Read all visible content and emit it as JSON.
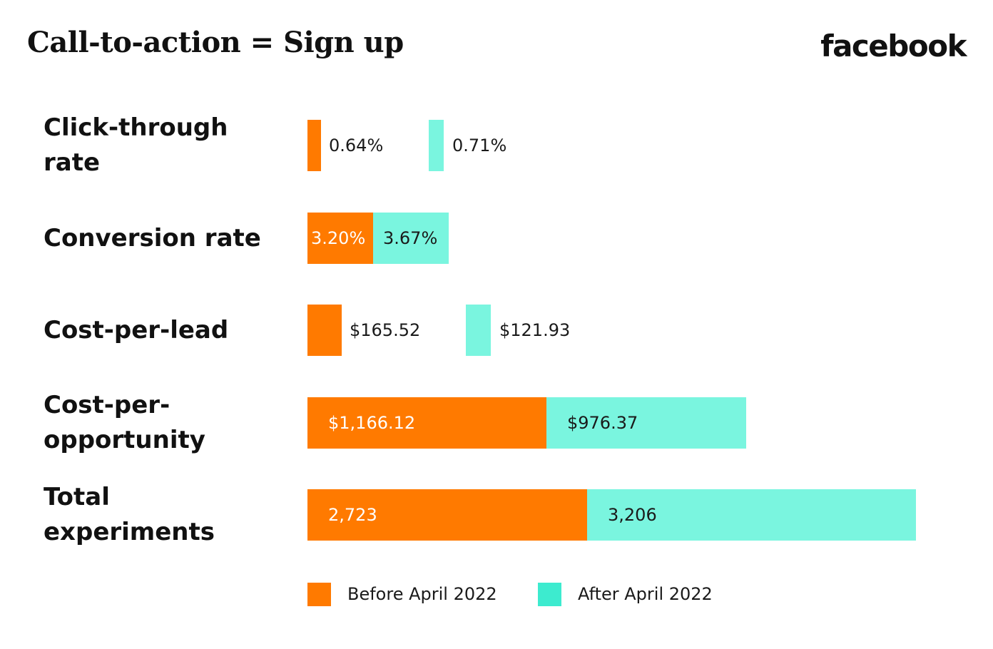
{
  "header": {
    "title": "Call-to-action = Sign up",
    "brand": "facebook"
  },
  "colors": {
    "before": "#FF7A00",
    "after": "#7AF5DF",
    "after_legend": "#3DEBCF"
  },
  "chart_data": {
    "type": "bar",
    "orientation": "horizontal",
    "title": "Call-to-action = Sign up",
    "categories": [
      "Click-through rate",
      "Conversion rate",
      "Cost-per-lead",
      "Cost-per-opportunity",
      "Total experiments"
    ],
    "category_lines": [
      [
        "Click-through",
        "rate"
      ],
      [
        "Conversion rate"
      ],
      [
        "Cost-per-lead"
      ],
      [
        "Cost-per-",
        "opportunity"
      ],
      [
        "Total",
        "experiments"
      ]
    ],
    "series": [
      {
        "name": "Before April 2022",
        "values": [
          0.64,
          3.2,
          165.52,
          1166.12,
          2723
        ],
        "labels": [
          "0.64%",
          "3.20%",
          "$165.52",
          "$1,166.12",
          "2,723"
        ]
      },
      {
        "name": "After April 2022",
        "values": [
          0.71,
          3.67,
          121.93,
          976.37,
          3206
        ],
        "labels": [
          "0.71%",
          "3.67%",
          "$121.93",
          "$976.37",
          "3,206"
        ]
      }
    ],
    "row_layout": [
      "separate",
      "stacked",
      "separate",
      "stacked",
      "stacked"
    ],
    "legend_position": "bottom",
    "grid": false,
    "xlabel": "",
    "ylabel": ""
  }
}
